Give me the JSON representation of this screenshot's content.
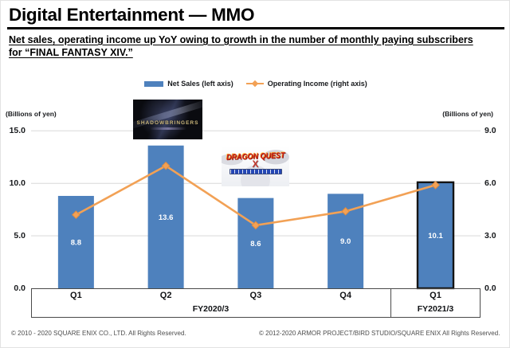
{
  "slide": {
    "title": "Digital Entertainment — MMO",
    "subtitle": {
      "line1": "Net sales, operating income up YoY owing to growth in the number of monthly paying subscribers",
      "line2": "for “FINAL FANTASY XIV.”"
    },
    "footer": {
      "left": "© 2010 - 2020 SQUARE ENIX CO., LTD. All Rights Reserved.",
      "right": "© 2012-2020 ARMOR PROJECT/BIRD STUDIO/SQUARE ENIX All Rights Reserved."
    }
  },
  "legend": {
    "net_sales_label": "Net Sales (left axis)",
    "operating_income_label": "Operating Income (right axis)"
  },
  "logos": {
    "shadowbringers": {
      "title": "SHADOWBRINGERS"
    },
    "dragon_quest_x": {
      "title": "DRAGON QUEST",
      "mark": "X"
    }
  },
  "colors": {
    "bar": "#4E81BD",
    "line": "#F2A155",
    "line_marker_stroke": "#E18C3F",
    "grid": "#D9D9D9",
    "bar_label_text": "#FFFFFF",
    "highlight_border": "#141414",
    "axis_box_border": "#4A4A4A"
  },
  "chart_data": {
    "type": "bar",
    "title": "Digital Entertainment — MMO quarterly net sales and operating income",
    "categories": [
      "Q1",
      "Q2",
      "Q3",
      "Q4",
      "Q1"
    ],
    "group_labels": [
      {
        "label": "FY2020/3",
        "category_indexes": [
          0,
          1,
          2,
          3
        ]
      },
      {
        "label": "FY2021/3",
        "category_indexes": [
          4
        ]
      }
    ],
    "series": [
      {
        "name": "Net Sales (left axis)",
        "type": "bar",
        "axis": "left",
        "values": [
          8.8,
          13.6,
          8.6,
          9.0,
          10.1
        ],
        "data_labels": [
          "8.8",
          "13.6",
          "8.6",
          "9.0",
          "10.1"
        ]
      },
      {
        "name": "Operating Income (right axis)",
        "type": "line",
        "axis": "right",
        "values": [
          4.2,
          7.0,
          3.6,
          4.4,
          5.9
        ],
        "values_note": "estimated from marker positions; no data labels shown in chart"
      }
    ],
    "left_axis": {
      "label": "(Billions of yen)",
      "min": 0.0,
      "max": 15.0,
      "ticks": [
        0.0,
        5.0,
        10.0,
        15.0
      ],
      "tick_labels": [
        "0.0",
        "5.0",
        "10.0",
        "15.0"
      ]
    },
    "right_axis": {
      "label": "(Billions of yen)",
      "min": 0.0,
      "max": 9.0,
      "ticks": [
        0.0,
        3.0,
        6.0,
        9.0
      ],
      "tick_labels": [
        "0.0",
        "3.0",
        "6.0",
        "9.0"
      ]
    },
    "grid": true,
    "legend_position": "top",
    "highlighted_category_index": 4
  }
}
